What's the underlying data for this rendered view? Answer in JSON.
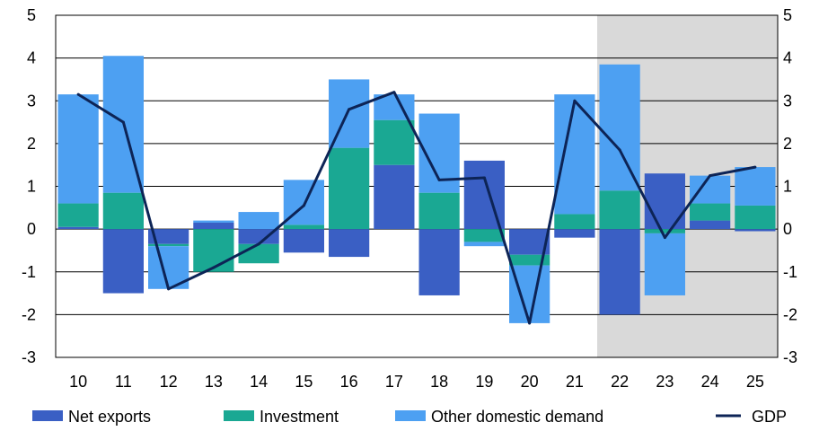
{
  "chart_data": {
    "type": "bar",
    "stacked": true,
    "categories": [
      "10",
      "11",
      "12",
      "13",
      "14",
      "15",
      "16",
      "17",
      "18",
      "19",
      "20",
      "21",
      "22",
      "23",
      "24",
      "25"
    ],
    "ylim": [
      -3,
      5
    ],
    "y_ticks": [
      "5",
      "4",
      "3",
      "2",
      "1",
      "0",
      "-1",
      "-2",
      "-3"
    ],
    "y_tick_values": [
      5,
      4,
      3,
      2,
      1,
      0,
      -1,
      -2,
      -3
    ],
    "grid": true,
    "forecast_shading": {
      "from_category": "22",
      "to_category": "25",
      "color": "#d9d9d9"
    },
    "legend_position": "bottom",
    "colors": {
      "net_exports": "#3a5fc4",
      "investment": "#1aa893",
      "other_domestic_demand": "#4da0f2",
      "gdp": "#0d2456"
    },
    "series": [
      {
        "name": "Net exports",
        "key": "net_exports",
        "values": [
          0.05,
          -1.5,
          -0.35,
          0.15,
          -0.35,
          -0.55,
          -0.65,
          1.5,
          -1.55,
          1.6,
          -0.6,
          -0.2,
          -2.0,
          1.3,
          0.2,
          -0.05
        ]
      },
      {
        "name": "Investment",
        "key": "investment",
        "values": [
          0.55,
          0.85,
          -0.05,
          -1.0,
          -0.45,
          0.1,
          1.9,
          1.05,
          0.85,
          -0.3,
          -0.25,
          0.35,
          0.9,
          -0.1,
          0.4,
          0.55
        ]
      },
      {
        "name": "Other domestic demand",
        "key": "other_domestic_demand",
        "values": [
          2.55,
          3.2,
          -1.0,
          0.05,
          0.4,
          1.05,
          1.6,
          0.6,
          1.85,
          -0.1,
          -1.35,
          2.8,
          2.95,
          -1.45,
          0.65,
          0.9
        ]
      },
      {
        "name": "GDP",
        "key": "gdp",
        "type": "line",
        "values": [
          3.15,
          2.5,
          -1.4,
          -0.9,
          -0.35,
          0.55,
          2.8,
          3.2,
          1.15,
          1.2,
          -2.2,
          3.0,
          1.85,
          -0.2,
          1.25,
          1.45
        ]
      }
    ]
  }
}
